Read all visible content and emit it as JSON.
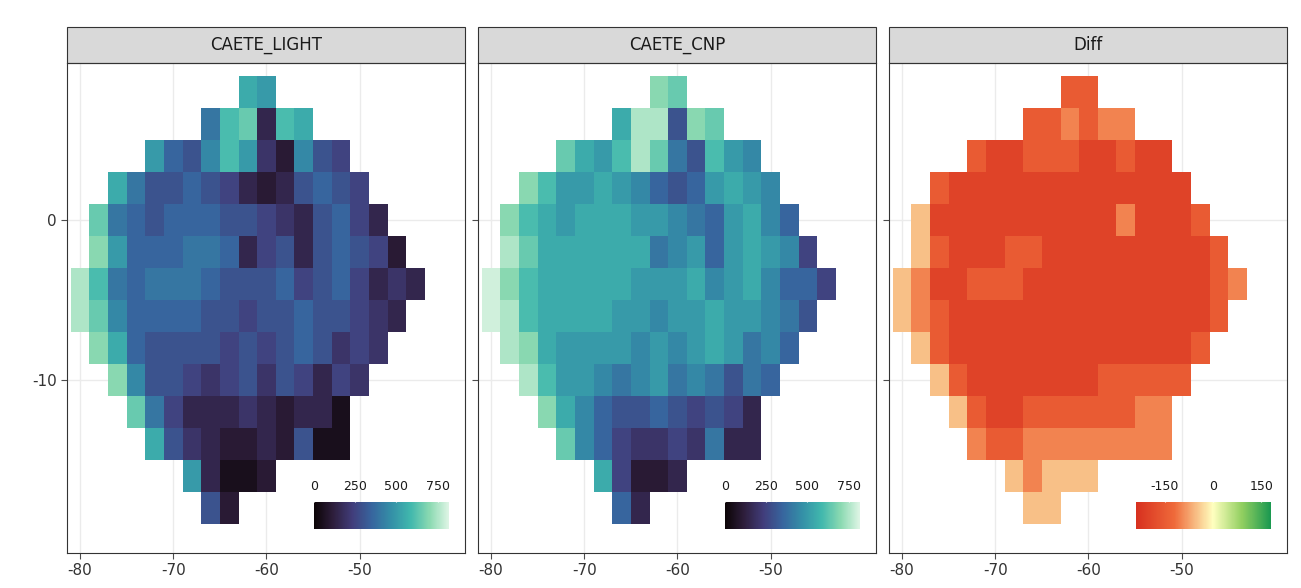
{
  "chart_data": [
    {
      "type": "heatmap",
      "title": "CAETE_LIGHT",
      "x": [
        -80,
        -78,
        -76,
        -74,
        -72,
        -70,
        -68,
        -66,
        -64,
        -62,
        -60,
        -58,
        -56,
        -54,
        -52,
        -50,
        -48,
        -46,
        -44
      ],
      "y": [
        8,
        6,
        4,
        2,
        0,
        -2,
        -4,
        -6,
        -8,
        -10,
        -12,
        -14,
        -16,
        -18
      ],
      "cells": [
        [
          null,
          null,
          null,
          null,
          null,
          null,
          null,
          null,
          null,
          550,
          500,
          null,
          null,
          null,
          null,
          null,
          null,
          null,
          null
        ],
        [
          null,
          null,
          null,
          null,
          null,
          null,
          null,
          400,
          600,
          650,
          150,
          600,
          550,
          null,
          null,
          null,
          null,
          null,
          null
        ],
        [
          null,
          null,
          null,
          null,
          500,
          350,
          300,
          450,
          600,
          500,
          200,
          100,
          450,
          300,
          250,
          null,
          null,
          null,
          null
        ],
        [
          null,
          null,
          550,
          400,
          300,
          300,
          350,
          300,
          250,
          150,
          100,
          150,
          300,
          350,
          300,
          250,
          null,
          null,
          null
        ],
        [
          null,
          650,
          400,
          350,
          300,
          350,
          350,
          350,
          300,
          300,
          250,
          200,
          150,
          300,
          350,
          250,
          150,
          null,
          null
        ],
        [
          null,
          700,
          500,
          350,
          350,
          350,
          400,
          400,
          350,
          150,
          250,
          300,
          150,
          300,
          350,
          300,
          250,
          100,
          null
        ],
        [
          750,
          600,
          400,
          350,
          400,
          400,
          400,
          350,
          300,
          300,
          300,
          350,
          250,
          300,
          350,
          250,
          150,
          200,
          150
        ],
        [
          750,
          650,
          450,
          350,
          350,
          350,
          350,
          300,
          300,
          250,
          300,
          300,
          350,
          300,
          300,
          250,
          200,
          150,
          null
        ],
        [
          null,
          700,
          550,
          350,
          300,
          300,
          300,
          300,
          250,
          300,
          250,
          300,
          350,
          300,
          200,
          250,
          200,
          null,
          null
        ],
        [
          null,
          null,
          700,
          450,
          300,
          300,
          250,
          200,
          250,
          300,
          200,
          300,
          250,
          150,
          250,
          200,
          null,
          null,
          null
        ],
        [
          null,
          null,
          null,
          650,
          400,
          250,
          150,
          150,
          150,
          200,
          150,
          100,
          150,
          150,
          50,
          null,
          null,
          null,
          null
        ],
        [
          null,
          null,
          null,
          null,
          550,
          300,
          200,
          150,
          100,
          100,
          150,
          100,
          300,
          50,
          50,
          null,
          null,
          null,
          null
        ],
        [
          null,
          null,
          null,
          null,
          null,
          null,
          500,
          150,
          50,
          50,
          100,
          null,
          null,
          null,
          null,
          null,
          null,
          null,
          null
        ],
        [
          null,
          null,
          null,
          null,
          null,
          null,
          null,
          300,
          100,
          null,
          null,
          null,
          null,
          null,
          null,
          null,
          null,
          null,
          null
        ]
      ],
      "xlim": [
        -81.4,
        -38.7
      ],
      "ylim": [
        -20.8,
        9.8
      ],
      "xticks": [
        -80,
        -70,
        -60,
        -50
      ],
      "yticks": [
        -10,
        0
      ],
      "grid": true,
      "colorbar_lim": [
        0,
        820
      ],
      "colorbar_ticks": [
        0,
        250,
        500,
        750
      ]
    },
    {
      "type": "heatmap",
      "title": "CAETE_CNP",
      "x": [
        -80,
        -78,
        -76,
        -74,
        -72,
        -70,
        -68,
        -66,
        -64,
        -62,
        -60,
        -58,
        -56,
        -54,
        -52,
        -50,
        -48,
        -46,
        -44
      ],
      "y": [
        8,
        6,
        4,
        2,
        0,
        -2,
        -4,
        -6,
        -8,
        -10,
        -12,
        -14,
        -16,
        -18
      ],
      "cells": [
        [
          null,
          null,
          null,
          null,
          null,
          null,
          null,
          null,
          null,
          700,
          650,
          null,
          null,
          null,
          null,
          null,
          null,
          null,
          null
        ],
        [
          null,
          null,
          null,
          null,
          null,
          null,
          null,
          550,
          750,
          750,
          300,
          700,
          650,
          null,
          null,
          null,
          null,
          null,
          null
        ],
        [
          null,
          null,
          null,
          null,
          650,
          550,
          500,
          600,
          750,
          650,
          400,
          300,
          600,
          500,
          450,
          null,
          null,
          null,
          null
        ],
        [
          null,
          null,
          700,
          600,
          500,
          500,
          550,
          500,
          450,
          350,
          300,
          350,
          500,
          550,
          500,
          450,
          null,
          null,
          null
        ],
        [
          null,
          700,
          600,
          550,
          500,
          550,
          550,
          550,
          500,
          500,
          450,
          400,
          350,
          500,
          550,
          450,
          350,
          null,
          null
        ],
        [
          null,
          750,
          650,
          550,
          550,
          550,
          550,
          550,
          550,
          400,
          450,
          500,
          350,
          500,
          550,
          500,
          450,
          250,
          null
        ],
        [
          800,
          700,
          600,
          550,
          550,
          550,
          550,
          550,
          500,
          500,
          500,
          550,
          450,
          500,
          550,
          450,
          350,
          350,
          250
        ],
        [
          800,
          750,
          600,
          550,
          550,
          550,
          550,
          500,
          500,
          450,
          500,
          500,
          550,
          500,
          500,
          450,
          400,
          300,
          null
        ],
        [
          null,
          750,
          700,
          550,
          500,
          500,
          500,
          500,
          450,
          500,
          450,
          500,
          550,
          500,
          400,
          450,
          350,
          null,
          null
        ],
        [
          null,
          null,
          750,
          600,
          500,
          500,
          450,
          400,
          450,
          500,
          400,
          450,
          400,
          300,
          400,
          350,
          null,
          null,
          null
        ],
        [
          null,
          null,
          null,
          700,
          550,
          450,
          350,
          300,
          300,
          350,
          300,
          250,
          300,
          250,
          150,
          null,
          null,
          null,
          null
        ],
        [
          null,
          null,
          null,
          null,
          650,
          450,
          350,
          250,
          200,
          200,
          250,
          200,
          400,
          150,
          150,
          null,
          null,
          null,
          null
        ],
        [
          null,
          null,
          null,
          null,
          null,
          null,
          550,
          250,
          100,
          100,
          150,
          null,
          null,
          null,
          null,
          null,
          null,
          null,
          null
        ],
        [
          null,
          null,
          null,
          null,
          null,
          null,
          null,
          350,
          150,
          null,
          null,
          null,
          null,
          null,
          null,
          null,
          null,
          null,
          null
        ]
      ],
      "xlim": [
        -81.4,
        -38.7
      ],
      "ylim": [
        -20.8,
        9.8
      ],
      "xticks": [
        -80,
        -70,
        -60,
        -50
      ],
      "yticks": [
        -10,
        0
      ],
      "grid": true,
      "tick_labels": "x",
      "colorbar_lim": [
        0,
        820
      ],
      "colorbar_ticks": [
        0,
        250,
        500,
        750
      ]
    },
    {
      "type": "heatmap",
      "title": "Diff",
      "x": [
        -80,
        -78,
        -76,
        -74,
        -72,
        -70,
        -68,
        -66,
        -64,
        -62,
        -60,
        -58,
        -56,
        -54,
        -52,
        -50,
        -48,
        -46,
        -44
      ],
      "y": [
        8,
        6,
        4,
        2,
        0,
        -2,
        -4,
        -6,
        -8,
        -10,
        -12,
        -14,
        -16,
        -18
      ],
      "cells": [
        [
          null,
          null,
          null,
          null,
          null,
          null,
          null,
          null,
          null,
          -150,
          -150,
          null,
          null,
          null,
          null,
          null,
          null,
          null,
          null
        ],
        [
          null,
          null,
          null,
          null,
          null,
          null,
          null,
          -150,
          -150,
          -100,
          -150,
          -100,
          -100,
          null,
          null,
          null,
          null,
          null,
          null
        ],
        [
          null,
          null,
          null,
          null,
          -150,
          -200,
          -200,
          -150,
          -150,
          -150,
          -200,
          -200,
          -150,
          -200,
          -200,
          null,
          null,
          null,
          null
        ],
        [
          null,
          null,
          -150,
          -200,
          -200,
          -200,
          -200,
          -200,
          -200,
          -200,
          -200,
          -200,
          -200,
          -200,
          -200,
          -200,
          null,
          null,
          null
        ],
        [
          null,
          -50,
          -200,
          -200,
          -200,
          -200,
          -200,
          -200,
          -200,
          -200,
          -200,
          -200,
          -100,
          -200,
          -200,
          -200,
          -150,
          null,
          null
        ],
        [
          null,
          -50,
          -150,
          -200,
          -200,
          -200,
          -150,
          -150,
          -200,
          -200,
          -200,
          -200,
          -200,
          -200,
          -200,
          -200,
          -200,
          -150,
          null
        ],
        [
          -50,
          -100,
          -200,
          -200,
          -150,
          -150,
          -150,
          -200,
          -200,
          -200,
          -200,
          -200,
          -200,
          -200,
          -200,
          -200,
          -200,
          -150,
          -100
        ],
        [
          -50,
          -100,
          -150,
          -200,
          -200,
          -200,
          -200,
          -200,
          -200,
          -200,
          -200,
          -200,
          -200,
          -200,
          -200,
          -200,
          -200,
          -150,
          null
        ],
        [
          null,
          -50,
          -150,
          -200,
          -200,
          -200,
          -200,
          -200,
          -200,
          -200,
          -200,
          -200,
          -200,
          -200,
          -200,
          -200,
          -150,
          null,
          null
        ],
        [
          null,
          null,
          -50,
          -150,
          -200,
          -200,
          -200,
          -200,
          -200,
          -200,
          -200,
          -150,
          -150,
          -150,
          -150,
          -150,
          null,
          null,
          null
        ],
        [
          null,
          null,
          null,
          -50,
          -150,
          -200,
          -200,
          -150,
          -150,
          -150,
          -150,
          -150,
          -150,
          -100,
          -100,
          null,
          null,
          null,
          null
        ],
        [
          null,
          null,
          null,
          null,
          -100,
          -150,
          -150,
          -100,
          -100,
          -100,
          -100,
          -100,
          -100,
          -100,
          -100,
          null,
          null,
          null,
          null
        ],
        [
          null,
          null,
          null,
          null,
          null,
          null,
          -50,
          -100,
          -50,
          -50,
          -50,
          null,
          null,
          null,
          null,
          null,
          null,
          null,
          null
        ],
        [
          null,
          null,
          null,
          null,
          null,
          null,
          null,
          -50,
          -50,
          null,
          null,
          null,
          null,
          null,
          null,
          null,
          null,
          null,
          null
        ]
      ],
      "xlim": [
        -81.4,
        -38.7
      ],
      "ylim": [
        -20.8,
        9.8
      ],
      "xticks": [
        -80,
        -70,
        -60,
        -50
      ],
      "yticks": [
        -10,
        0
      ],
      "grid": true,
      "tick_labels": "x",
      "colorbar_lim": [
        -240,
        180
      ],
      "colorbar_ticks": [
        -150,
        0,
        150
      ]
    }
  ]
}
